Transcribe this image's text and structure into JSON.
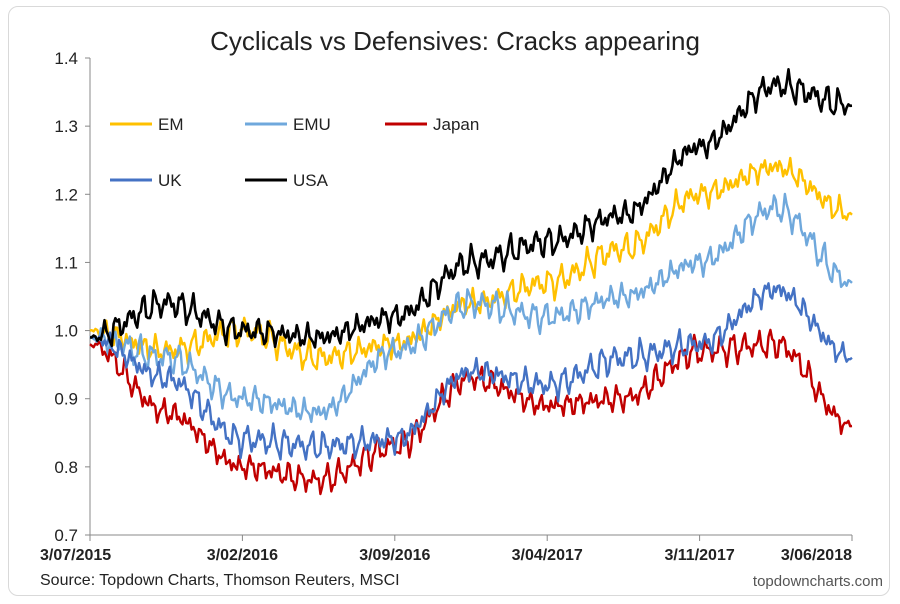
{
  "chart_data": {
    "type": "line",
    "title": "Cyclicals vs Defensives: Cracks appearing",
    "xlabel": "",
    "ylabel": "",
    "ylim": [
      0.7,
      1.4
    ],
    "yticks": [
      "0.7",
      "0.8",
      "0.9",
      "1.0",
      "1.1",
      "1.2",
      "1.3",
      "1.4"
    ],
    "xticks": [
      "3/07/2015",
      "3/02/2016",
      "3/09/2016",
      "3/04/2017",
      "3/11/2017",
      "3/06/2018"
    ],
    "x_key_points": [
      0,
      0.1,
      0.2,
      0.3,
      0.4,
      0.5,
      0.6,
      0.7,
      0.8,
      0.9,
      1.0
    ],
    "legend_placement": "top-left",
    "grid": false,
    "series": [
      {
        "name": "EM",
        "color": "#FFC000",
        "values": [
          1.0,
          0.97,
          1.0,
          0.96,
          0.98,
          1.04,
          1.07,
          1.12,
          1.2,
          1.24,
          1.17
        ]
      },
      {
        "name": "EMU",
        "color": "#6FA8DC",
        "values": [
          0.99,
          0.96,
          0.9,
          0.88,
          0.97,
          1.04,
          1.02,
          1.05,
          1.1,
          1.18,
          1.07
        ]
      },
      {
        "name": "Japan",
        "color": "#C00000",
        "values": [
          0.98,
          0.88,
          0.8,
          0.78,
          0.83,
          0.93,
          0.89,
          0.9,
          0.97,
          0.98,
          0.86
        ]
      },
      {
        "name": "UK",
        "color": "#4472C4",
        "values": [
          0.99,
          0.93,
          0.84,
          0.83,
          0.84,
          0.94,
          0.92,
          0.96,
          0.98,
          1.06,
          0.96
        ]
      },
      {
        "name": "USA",
        "color": "#000000",
        "values": [
          0.99,
          1.04,
          1.0,
          0.99,
          1.02,
          1.1,
          1.13,
          1.17,
          1.27,
          1.36,
          1.33
        ]
      }
    ]
  },
  "footer": {
    "source": "Source: Topdown Charts, Thomson Reuters, MSCI",
    "credit": "topdowncharts.com"
  }
}
